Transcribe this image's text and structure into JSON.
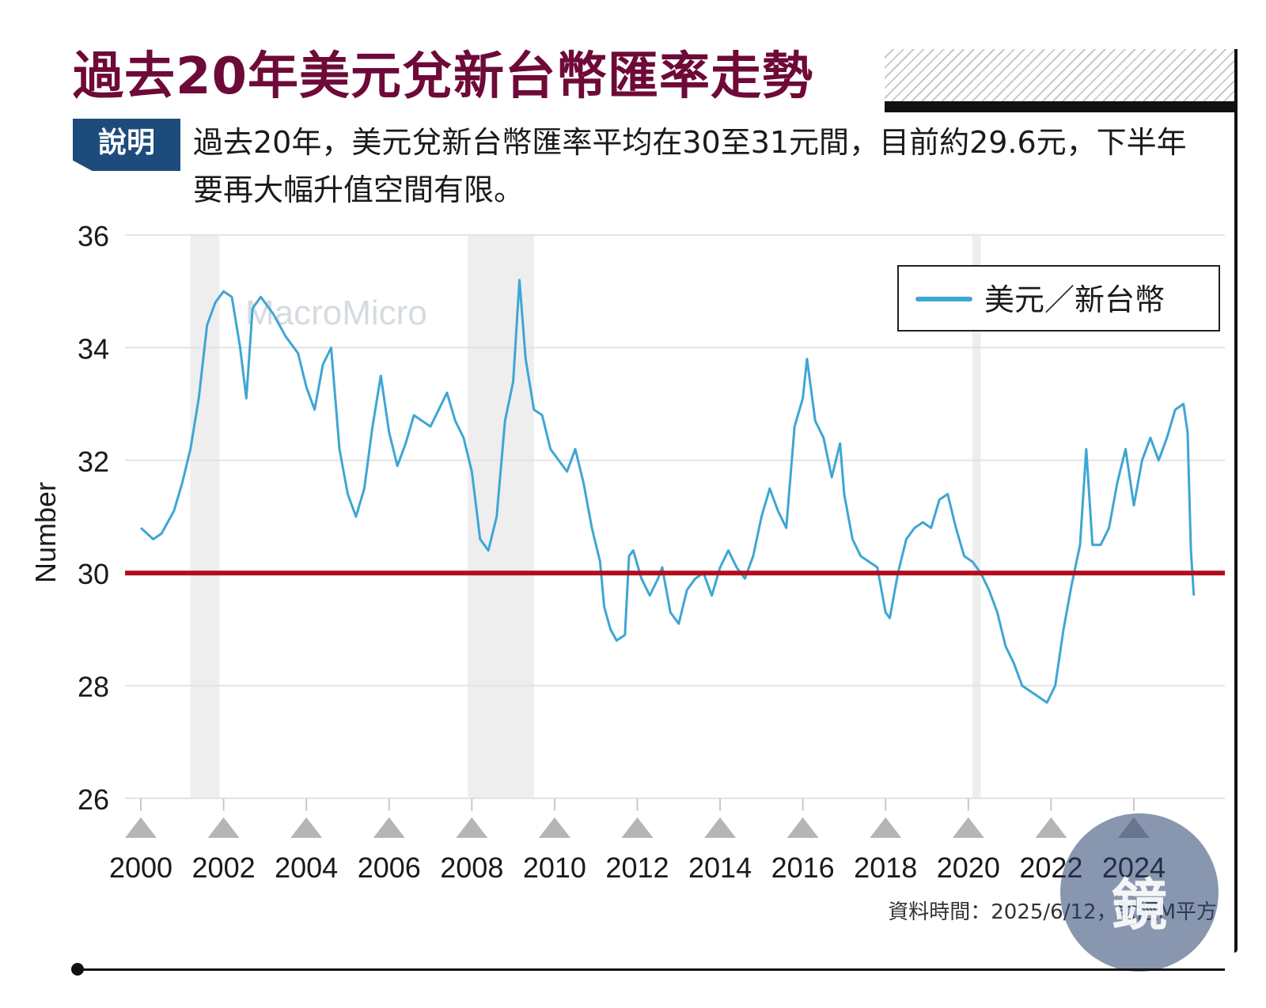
{
  "header": {
    "title": "過去20年美元兌新台幣匯率走勢",
    "label": "說明",
    "description": "過去20年，美元兌新台幣匯率平均在30至31元間，目前約29.6元，下半年要再大幅升值空間有限。"
  },
  "source": "資料時間：2025/6/12，財經M平方",
  "watermark": "MacroMicro",
  "logo_text": "鏡週刊",
  "colors": {
    "line": "#3ea6d4",
    "reference": "#b30c1c",
    "title": "#6e0a38",
    "label_bg": "#1d4b7c",
    "shade": "#eeeeee"
  },
  "chart_data": {
    "type": "line",
    "ylabel": "Number",
    "xlabel": "",
    "ylim": [
      26,
      36
    ],
    "xlim": [
      2000,
      2025.5
    ],
    "yticks": [
      26,
      28,
      30,
      32,
      34,
      36
    ],
    "xticks": [
      2000,
      2002,
      2004,
      2006,
      2008,
      2010,
      2012,
      2014,
      2016,
      2018,
      2020,
      2022,
      2024
    ],
    "legend": "top-right",
    "grid": true,
    "reference_line": 30,
    "shaded_periods": [
      [
        2001.2,
        2001.9
      ],
      [
        2007.9,
        2009.5
      ],
      [
        2020.1,
        2020.3
      ]
    ],
    "series": [
      {
        "name": "美元／新台幣",
        "points": [
          [
            2000.0,
            30.8
          ],
          [
            2000.3,
            30.6
          ],
          [
            2000.5,
            30.7
          ],
          [
            2000.8,
            31.1
          ],
          [
            2001.0,
            31.6
          ],
          [
            2001.2,
            32.2
          ],
          [
            2001.4,
            33.1
          ],
          [
            2001.6,
            34.4
          ],
          [
            2001.8,
            34.8
          ],
          [
            2002.0,
            35.0
          ],
          [
            2002.2,
            34.9
          ],
          [
            2002.4,
            34.0
          ],
          [
            2002.55,
            33.1
          ],
          [
            2002.7,
            34.7
          ],
          [
            2002.9,
            34.9
          ],
          [
            2003.2,
            34.6
          ],
          [
            2003.5,
            34.2
          ],
          [
            2003.8,
            33.9
          ],
          [
            2004.0,
            33.3
          ],
          [
            2004.2,
            32.9
          ],
          [
            2004.4,
            33.7
          ],
          [
            2004.6,
            34.0
          ],
          [
            2004.8,
            32.2
          ],
          [
            2005.0,
            31.4
          ],
          [
            2005.2,
            31.0
          ],
          [
            2005.4,
            31.5
          ],
          [
            2005.6,
            32.6
          ],
          [
            2005.8,
            33.5
          ],
          [
            2006.0,
            32.5
          ],
          [
            2006.2,
            31.9
          ],
          [
            2006.4,
            32.3
          ],
          [
            2006.6,
            32.8
          ],
          [
            2006.8,
            32.7
          ],
          [
            2007.0,
            32.6
          ],
          [
            2007.2,
            32.9
          ],
          [
            2007.4,
            33.2
          ],
          [
            2007.6,
            32.7
          ],
          [
            2007.8,
            32.4
          ],
          [
            2008.0,
            31.8
          ],
          [
            2008.2,
            30.6
          ],
          [
            2008.4,
            30.4
          ],
          [
            2008.6,
            31.0
          ],
          [
            2008.8,
            32.7
          ],
          [
            2009.0,
            33.4
          ],
          [
            2009.15,
            35.2
          ],
          [
            2009.3,
            33.8
          ],
          [
            2009.5,
            32.9
          ],
          [
            2009.7,
            32.8
          ],
          [
            2009.9,
            32.2
          ],
          [
            2010.1,
            32.0
          ],
          [
            2010.3,
            31.8
          ],
          [
            2010.5,
            32.2
          ],
          [
            2010.7,
            31.6
          ],
          [
            2010.9,
            30.8
          ],
          [
            2011.1,
            30.2
          ],
          [
            2011.2,
            29.4
          ],
          [
            2011.35,
            29.0
          ],
          [
            2011.5,
            28.8
          ],
          [
            2011.7,
            28.9
          ],
          [
            2011.8,
            30.3
          ],
          [
            2011.9,
            30.4
          ],
          [
            2012.1,
            29.9
          ],
          [
            2012.3,
            29.6
          ],
          [
            2012.5,
            29.9
          ],
          [
            2012.6,
            30.1
          ],
          [
            2012.8,
            29.3
          ],
          [
            2013.0,
            29.1
          ],
          [
            2013.2,
            29.7
          ],
          [
            2013.4,
            29.9
          ],
          [
            2013.6,
            30.0
          ],
          [
            2013.8,
            29.6
          ],
          [
            2014.0,
            30.1
          ],
          [
            2014.2,
            30.4
          ],
          [
            2014.4,
            30.1
          ],
          [
            2014.6,
            29.9
          ],
          [
            2014.8,
            30.3
          ],
          [
            2015.0,
            31.0
          ],
          [
            2015.2,
            31.5
          ],
          [
            2015.4,
            31.1
          ],
          [
            2015.6,
            30.8
          ],
          [
            2015.8,
            32.6
          ],
          [
            2016.0,
            33.1
          ],
          [
            2016.1,
            33.8
          ],
          [
            2016.3,
            32.7
          ],
          [
            2016.5,
            32.4
          ],
          [
            2016.7,
            31.7
          ],
          [
            2016.9,
            32.3
          ],
          [
            2017.0,
            31.4
          ],
          [
            2017.2,
            30.6
          ],
          [
            2017.4,
            30.3
          ],
          [
            2017.6,
            30.2
          ],
          [
            2017.8,
            30.1
          ],
          [
            2018.0,
            29.3
          ],
          [
            2018.1,
            29.2
          ],
          [
            2018.3,
            30.0
          ],
          [
            2018.5,
            30.6
          ],
          [
            2018.7,
            30.8
          ],
          [
            2018.9,
            30.9
          ],
          [
            2019.1,
            30.8
          ],
          [
            2019.3,
            31.3
          ],
          [
            2019.5,
            31.4
          ],
          [
            2019.7,
            30.8
          ],
          [
            2019.9,
            30.3
          ],
          [
            2020.1,
            30.2
          ],
          [
            2020.3,
            30.0
          ],
          [
            2020.5,
            29.7
          ],
          [
            2020.7,
            29.3
          ],
          [
            2020.9,
            28.7
          ],
          [
            2021.1,
            28.4
          ],
          [
            2021.3,
            28.0
          ],
          [
            2021.5,
            27.9
          ],
          [
            2021.7,
            27.8
          ],
          [
            2021.9,
            27.7
          ],
          [
            2022.1,
            28.0
          ],
          [
            2022.3,
            29.0
          ],
          [
            2022.5,
            29.8
          ],
          [
            2022.7,
            30.5
          ],
          [
            2022.85,
            32.2
          ],
          [
            2023.0,
            30.5
          ],
          [
            2023.2,
            30.5
          ],
          [
            2023.4,
            30.8
          ],
          [
            2023.6,
            31.6
          ],
          [
            2023.8,
            32.2
          ],
          [
            2024.0,
            31.2
          ],
          [
            2024.2,
            32.0
          ],
          [
            2024.4,
            32.4
          ],
          [
            2024.6,
            32.0
          ],
          [
            2024.8,
            32.4
          ],
          [
            2025.0,
            32.9
          ],
          [
            2025.2,
            33.0
          ],
          [
            2025.3,
            32.5
          ],
          [
            2025.38,
            30.4
          ],
          [
            2025.45,
            29.6
          ]
        ]
      }
    ]
  }
}
